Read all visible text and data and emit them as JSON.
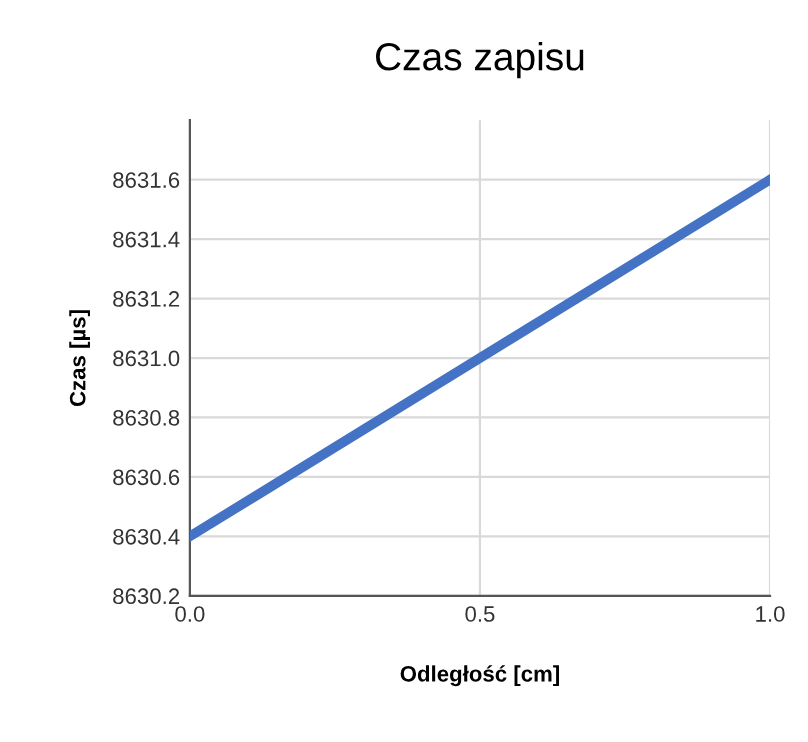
{
  "chart_data": {
    "type": "line",
    "title": "Czas zapisu",
    "xlabel": "Odległość [cm]",
    "ylabel": "Czas [µs]",
    "x": [
      0.0,
      1.0
    ],
    "series": [
      {
        "color": "#4472c4",
        "values": [
          8630.4,
          8631.6
        ]
      }
    ],
    "xlim": [
      0.0,
      1.0
    ],
    "xticks": [
      {
        "value": 0.0,
        "label": "0.0"
      },
      {
        "value": 0.5,
        "label": "0.5"
      },
      {
        "value": 1.0,
        "label": "1.0"
      }
    ],
    "ylim": [
      8630.2,
      8631.8
    ],
    "yticks": [
      {
        "value": 8630.2,
        "label": "8630.2"
      },
      {
        "value": 8630.4,
        "label": "8630.4"
      },
      {
        "value": 8630.6,
        "label": "8630.6"
      },
      {
        "value": 8630.8,
        "label": "8630.8"
      },
      {
        "value": 8631.0,
        "label": "8631.0"
      },
      {
        "value": 8631.2,
        "label": "8631.2"
      },
      {
        "value": 8631.4,
        "label": "8631.4"
      },
      {
        "value": 8631.6,
        "label": "8631.6"
      }
    ],
    "grid": true,
    "marker": "none",
    "line_style": "solid"
  }
}
